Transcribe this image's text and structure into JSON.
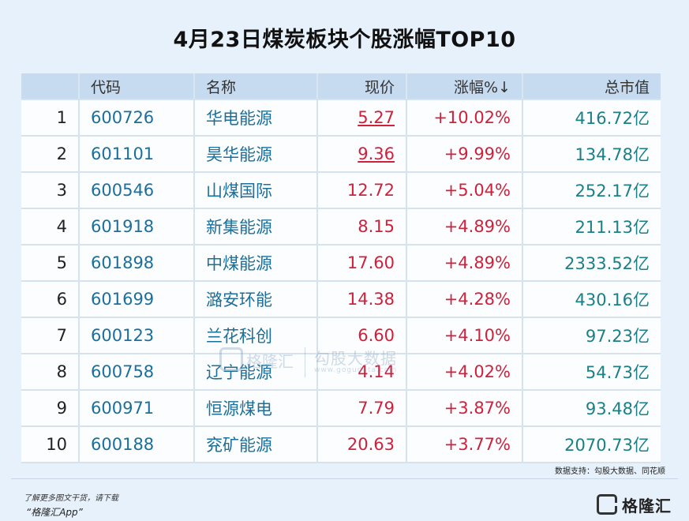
{
  "title": "4月23日煤炭板块个股涨幅TOP10",
  "table": {
    "headers": {
      "rank": "",
      "code": "代码",
      "name": "名称",
      "price": "现价",
      "change": "涨幅%↓",
      "cap": "总市值"
    },
    "rows": [
      {
        "rank": "1",
        "code": "600726",
        "name": "华电能源",
        "price": "5.27",
        "change": "+10.02%",
        "cap": "416.72亿"
      },
      {
        "rank": "2",
        "code": "601101",
        "name": "昊华能源",
        "price": "9.36",
        "change": "+9.99%",
        "cap": "134.78亿"
      },
      {
        "rank": "3",
        "code": "600546",
        "name": "山煤国际",
        "price": "12.72",
        "change": "+5.04%",
        "cap": "252.17亿"
      },
      {
        "rank": "4",
        "code": "601918",
        "name": "新集能源",
        "price": "8.15",
        "change": "+4.89%",
        "cap": "211.13亿"
      },
      {
        "rank": "5",
        "code": "601898",
        "name": "中煤能源",
        "price": "17.60",
        "change": "+4.89%",
        "cap": "2333.52亿"
      },
      {
        "rank": "6",
        "code": "601699",
        "name": "潞安环能",
        "price": "14.38",
        "change": "+4.28%",
        "cap": "430.16亿"
      },
      {
        "rank": "7",
        "code": "600123",
        "name": "兰花科创",
        "price": "6.60",
        "change": "+4.10%",
        "cap": "97.23亿"
      },
      {
        "rank": "8",
        "code": "600758",
        "name": "辽宁能源",
        "price": "4.14",
        "change": "+4.02%",
        "cap": "54.73亿"
      },
      {
        "rank": "9",
        "code": "600971",
        "name": "恒源煤电",
        "price": "7.79",
        "change": "+3.87%",
        "cap": "93.48亿"
      },
      {
        "rank": "10",
        "code": "600188",
        "name": "兖矿能源",
        "price": "20.63",
        "change": "+3.77%",
        "cap": "2070.73亿"
      }
    ]
  },
  "watermark": {
    "brand": "格隆汇",
    "data": "勾股大数据",
    "url": "www.gogudata.com"
  },
  "source": "数据支持：勾股大数据、同花顺",
  "footer": {
    "line1": "了解更多图文干货，请下载",
    "line2": "“格隆汇App”",
    "brand": "格隆汇"
  },
  "colors": {
    "up": "#d0203a",
    "code": "#1b6f9a",
    "cap": "#1b7f86",
    "header_bg": "#c6daf0",
    "page_bg": "#e7f1fb"
  }
}
